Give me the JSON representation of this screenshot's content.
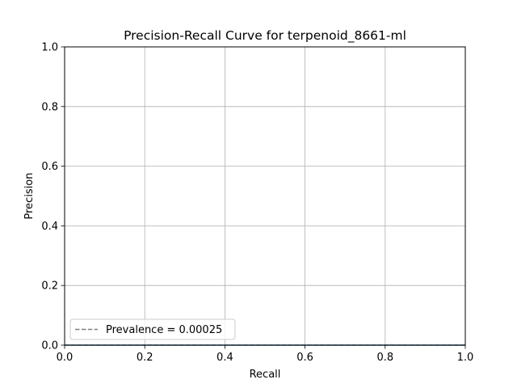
{
  "chart_data": {
    "type": "line",
    "title": "Precision-Recall Curve for terpenoid_8661-ml",
    "xlabel": "Recall",
    "ylabel": "Precision",
    "xlim": [
      0.0,
      1.0
    ],
    "ylim": [
      0.0,
      1.0
    ],
    "x_ticks": [
      "0.0",
      "0.2",
      "0.4",
      "0.6",
      "0.8",
      "1.0"
    ],
    "y_ticks": [
      "0.0",
      "0.2",
      "0.4",
      "0.6",
      "0.8",
      "1.0"
    ],
    "grid": true,
    "legend_position": "lower-left",
    "series": [
      {
        "x": [
          0.0,
          1.0
        ],
        "y": [
          0.0,
          0.0
        ],
        "color": "#1f77b4",
        "style": "solid"
      },
      {
        "name": "Prevalence = 0.00025",
        "x": [
          0.0,
          1.0
        ],
        "y": [
          0.00025,
          0.00025
        ],
        "color": "#808080",
        "style": "dashed"
      }
    ]
  }
}
